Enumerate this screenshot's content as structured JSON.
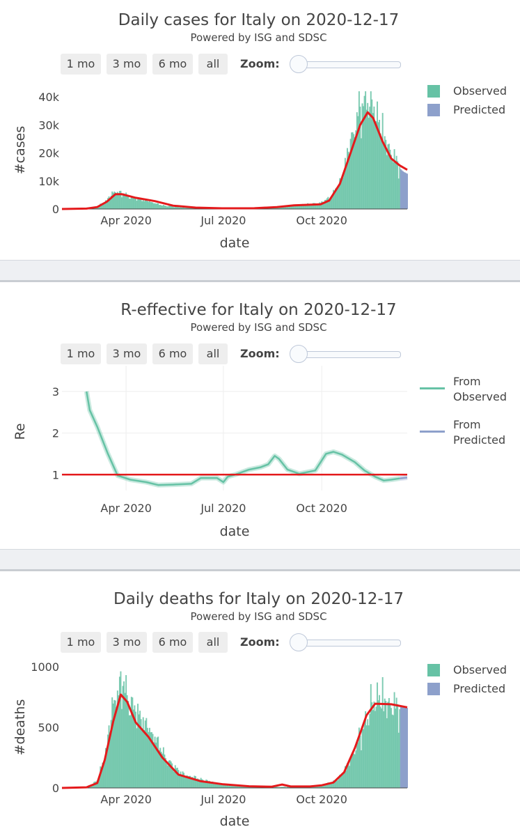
{
  "buttons": {
    "b1": "1 mo",
    "b2": "3 mo",
    "b3": "6 mo",
    "b4": "all"
  },
  "zoom_label": "Zoom:",
  "subtitle": "Powered by ISG and SDSC",
  "colors": {
    "observed": "#66c2a5",
    "predicted": "#8da0cb",
    "red": "#e41a1c",
    "line_obs": "#66c2a5",
    "line_pred": "#8da0cb"
  },
  "chart_data": [
    {
      "type": "bar",
      "title": "Daily cases for Italy on 2020-12-17",
      "xlabel": "date",
      "ylabel": "#cases",
      "ylim": [
        0,
        42000
      ],
      "yticks": [
        {
          "v": 0,
          "label": "0"
        },
        {
          "v": 10000,
          "label": "10k"
        },
        {
          "v": 20000,
          "label": "20k"
        },
        {
          "v": 30000,
          "label": "30k"
        },
        {
          "v": 40000,
          "label": "40k"
        }
      ],
      "xrange": [
        "2020-02-01",
        "2020-12-20"
      ],
      "xticks": [
        {
          "date": "2020-04-01",
          "label": "Apr 2020"
        },
        {
          "date": "2020-07-01",
          "label": "Jul 2020"
        },
        {
          "date": "2020-10-01",
          "label": "Oct 2020"
        }
      ],
      "grid": false,
      "legend": {
        "position": "top-right",
        "entries": [
          "Observed",
          "Predicted"
        ]
      },
      "series": [
        {
          "name": "Observed",
          "kind": "bars",
          "x_start": "2020-02-01",
          "x_end": "2020-12-13",
          "profile": [
            [
              "2020-02-01",
              0
            ],
            [
              "2020-02-24",
              100
            ],
            [
              "2020-03-05",
              800
            ],
            [
              "2020-03-12",
              2500
            ],
            [
              "2020-03-21",
              6200
            ],
            [
              "2020-03-27",
              5800
            ],
            [
              "2020-04-05",
              4300
            ],
            [
              "2020-04-20",
              3000
            ],
            [
              "2020-05-05",
              1300
            ],
            [
              "2020-05-25",
              500
            ],
            [
              "2020-06-15",
              300
            ],
            [
              "2020-07-10",
              230
            ],
            [
              "2020-08-01",
              300
            ],
            [
              "2020-08-20",
              800
            ],
            [
              "2020-09-10",
              1500
            ],
            [
              "2020-09-30",
              2200
            ],
            [
              "2020-10-10",
              4500
            ],
            [
              "2020-10-20",
              11000
            ],
            [
              "2020-10-30",
              27000
            ],
            [
              "2020-11-06",
              36000
            ],
            [
              "2020-11-13",
              40000
            ],
            [
              "2020-11-20",
              36000
            ],
            [
              "2020-11-28",
              26000
            ],
            [
              "2020-12-05",
              20000
            ],
            [
              "2020-12-13",
              15000
            ]
          ]
        },
        {
          "name": "Predicted",
          "kind": "bars",
          "x_start": "2020-12-14",
          "x_end": "2020-12-20",
          "values": [
            14200,
            13800,
            13500,
            13200,
            13000,
            12800,
            12600
          ]
        },
        {
          "name": "Smoothed",
          "kind": "line",
          "color": "#e41a1c",
          "points": [
            [
              "2020-02-01",
              0
            ],
            [
              "2020-02-24",
              150
            ],
            [
              "2020-03-05",
              700
            ],
            [
              "2020-03-14",
              2600
            ],
            [
              "2020-03-22",
              5300
            ],
            [
              "2020-03-28",
              5300
            ],
            [
              "2020-04-10",
              4000
            ],
            [
              "2020-04-28",
              2800
            ],
            [
              "2020-05-15",
              1200
            ],
            [
              "2020-06-05",
              500
            ],
            [
              "2020-06-30",
              250
            ],
            [
              "2020-07-30",
              280
            ],
            [
              "2020-08-20",
              700
            ],
            [
              "2020-09-05",
              1300
            ],
            [
              "2020-09-30",
              1700
            ],
            [
              "2020-10-08",
              3000
            ],
            [
              "2020-10-18",
              9000
            ],
            [
              "2020-10-28",
              20000
            ],
            [
              "2020-11-06",
              30000
            ],
            [
              "2020-11-13",
              34500
            ],
            [
              "2020-11-18",
              32500
            ],
            [
              "2020-11-27",
              24000
            ],
            [
              "2020-12-05",
              18000
            ],
            [
              "2020-12-13",
              15500
            ],
            [
              "2020-12-20",
              14000
            ]
          ]
        }
      ]
    },
    {
      "type": "line",
      "title": "R-effective for Italy on 2020-12-17",
      "xlabel": "date",
      "ylabel": "Re",
      "ylim": [
        0.62,
        3.45
      ],
      "yticks": [
        {
          "v": 1,
          "label": "1"
        },
        {
          "v": 2,
          "label": "2"
        },
        {
          "v": 3,
          "label": "3"
        }
      ],
      "xrange": [
        "2020-02-01",
        "2020-12-20"
      ],
      "xticks": [
        {
          "date": "2020-04-01",
          "label": "Apr 2020"
        },
        {
          "date": "2020-07-01",
          "label": "Jul 2020"
        },
        {
          "date": "2020-10-01",
          "label": "Oct 2020"
        }
      ],
      "grid": true,
      "legend": {
        "position": "top-right",
        "entries": [
          "From Observed",
          "From Predicted"
        ]
      },
      "series": [
        {
          "name": "From Observed",
          "color": "#66c2a5",
          "points": [
            [
              "2020-02-24",
              3.0
            ],
            [
              "2020-02-27",
              2.55
            ],
            [
              "2020-03-05",
              2.15
            ],
            [
              "2020-03-15",
              1.5
            ],
            [
              "2020-03-24",
              0.98
            ],
            [
              "2020-04-05",
              0.88
            ],
            [
              "2020-04-20",
              0.82
            ],
            [
              "2020-05-01",
              0.75
            ],
            [
              "2020-05-15",
              0.76
            ],
            [
              "2020-06-01",
              0.78
            ],
            [
              "2020-06-10",
              0.92
            ],
            [
              "2020-06-25",
              0.92
            ],
            [
              "2020-07-01",
              0.82
            ],
            [
              "2020-07-05",
              0.95
            ],
            [
              "2020-07-12",
              1.0
            ],
            [
              "2020-07-25",
              1.12
            ],
            [
              "2020-08-05",
              1.18
            ],
            [
              "2020-08-12",
              1.25
            ],
            [
              "2020-08-18",
              1.45
            ],
            [
              "2020-08-22",
              1.38
            ],
            [
              "2020-08-30",
              1.12
            ],
            [
              "2020-09-10",
              1.02
            ],
            [
              "2020-09-25",
              1.1
            ],
            [
              "2020-10-05",
              1.5
            ],
            [
              "2020-10-12",
              1.55
            ],
            [
              "2020-10-20",
              1.48
            ],
            [
              "2020-11-01",
              1.3
            ],
            [
              "2020-11-10",
              1.1
            ],
            [
              "2020-11-20",
              0.95
            ],
            [
              "2020-11-28",
              0.86
            ],
            [
              "2020-12-05",
              0.88
            ],
            [
              "2020-12-13",
              0.91
            ]
          ]
        },
        {
          "name": "From Predicted",
          "color": "#8da0cb",
          "points": [
            [
              "2020-12-13",
              0.91
            ],
            [
              "2020-12-20",
              0.93
            ]
          ]
        },
        {
          "name": "Threshold",
          "color": "#e41a1c",
          "points": [
            [
              "2020-02-01",
              1
            ],
            [
              "2020-12-20",
              1
            ]
          ]
        }
      ]
    },
    {
      "type": "bar",
      "title": "Daily deaths for Italy on 2020-12-17",
      "xlabel": "date",
      "ylabel": "#deaths",
      "ylim": [
        0,
        1000
      ],
      "yticks": [
        {
          "v": 0,
          "label": "0"
        },
        {
          "v": 500,
          "label": "500"
        },
        {
          "v": 1000,
          "label": "1000"
        }
      ],
      "xrange": [
        "2020-02-01",
        "2020-12-20"
      ],
      "xticks": [
        {
          "date": "2020-04-01",
          "label": "Apr 2020"
        },
        {
          "date": "2020-07-01",
          "label": "Jul 2020"
        },
        {
          "date": "2020-10-01",
          "label": "Oct 2020"
        }
      ],
      "grid": false,
      "legend": {
        "position": "top-right",
        "entries": [
          "Observed",
          "Predicted"
        ]
      },
      "series": [
        {
          "name": "Observed",
          "kind": "bars",
          "x_start": "2020-02-01",
          "x_end": "2020-12-13",
          "profile": [
            [
              "2020-02-01",
              0
            ],
            [
              "2020-02-24",
              5
            ],
            [
              "2020-03-05",
              60
            ],
            [
              "2020-03-12",
              250
            ],
            [
              "2020-03-20",
              700
            ],
            [
              "2020-03-28",
              880
            ],
            [
              "2020-04-05",
              700
            ],
            [
              "2020-04-15",
              580
            ],
            [
              "2020-04-28",
              420
            ],
            [
              "2020-05-10",
              220
            ],
            [
              "2020-05-25",
              110
            ],
            [
              "2020-06-15",
              60
            ],
            [
              "2020-07-05",
              20
            ],
            [
              "2020-08-01",
              10
            ],
            [
              "2020-08-22",
              8
            ],
            [
              "2020-09-10",
              12
            ],
            [
              "2020-10-01",
              25
            ],
            [
              "2020-10-15",
              60
            ],
            [
              "2020-10-25",
              180
            ],
            [
              "2020-11-05",
              400
            ],
            [
              "2020-11-15",
              650
            ],
            [
              "2020-11-22",
              760
            ],
            [
              "2020-12-01",
              700
            ],
            [
              "2020-12-13",
              650
            ]
          ]
        },
        {
          "name": "Predicted",
          "kind": "bars",
          "x_start": "2020-12-14",
          "x_end": "2020-12-20",
          "values": [
            680,
            675,
            670,
            668,
            665,
            662,
            660
          ]
        },
        {
          "name": "Smoothed",
          "kind": "line",
          "color": "#e41a1c",
          "points": [
            [
              "2020-02-01",
              0
            ],
            [
              "2020-02-24",
              5
            ],
            [
              "2020-03-05",
              40
            ],
            [
              "2020-03-12",
              230
            ],
            [
              "2020-03-20",
              550
            ],
            [
              "2020-03-27",
              770
            ],
            [
              "2020-04-02",
              710
            ],
            [
              "2020-04-10",
              540
            ],
            [
              "2020-04-22",
              420
            ],
            [
              "2020-05-05",
              250
            ],
            [
              "2020-05-20",
              110
            ],
            [
              "2020-06-10",
              55
            ],
            [
              "2020-07-01",
              30
            ],
            [
              "2020-07-25",
              14
            ],
            [
              "2020-08-15",
              10
            ],
            [
              "2020-08-25",
              28
            ],
            [
              "2020-09-02",
              12
            ],
            [
              "2020-09-20",
              12
            ],
            [
              "2020-10-01",
              22
            ],
            [
              "2020-10-12",
              45
            ],
            [
              "2020-10-22",
              130
            ],
            [
              "2020-11-01",
              330
            ],
            [
              "2020-11-12",
              600
            ],
            [
              "2020-11-20",
              695
            ],
            [
              "2020-12-05",
              690
            ],
            [
              "2020-12-20",
              665
            ]
          ]
        }
      ]
    }
  ]
}
